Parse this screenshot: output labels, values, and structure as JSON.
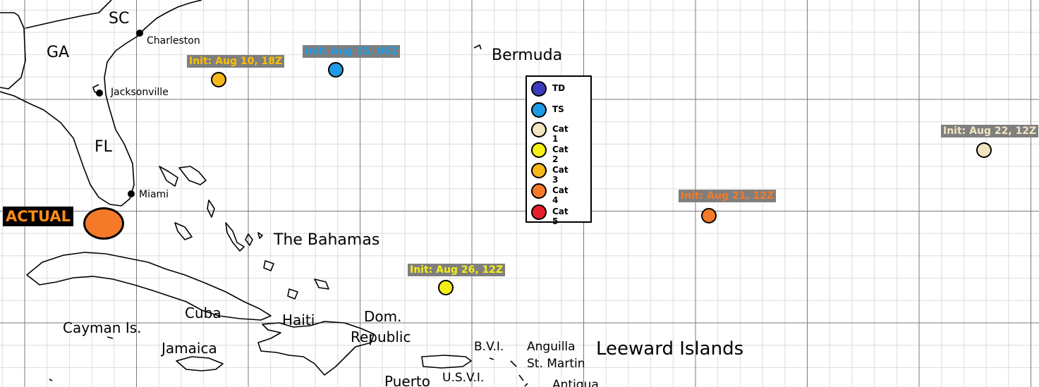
{
  "map_labels": {
    "sc": "SC",
    "ga": "GA",
    "fl": "FL",
    "bermuda": "Bermuda",
    "bahamas": "The Bahamas",
    "cuba": "Cuba",
    "cayman": "Cayman Is.",
    "jamaica": "Jamaica",
    "haiti": "Haiti",
    "dom1": "Dom.",
    "dom2": "Republic",
    "bvi": "B.V.I.",
    "anguilla": "Anguilla",
    "stmartin": "St. Martin",
    "leeward": "Leeward Islands",
    "puerto": "Puerto",
    "usvi": "U.S.V.I.",
    "antigua": "Antigua"
  },
  "cities": {
    "charleston": "Charleston",
    "jacksonville": "Jacksonville",
    "miami": "Miami"
  },
  "actual": {
    "label": "ACTUAL",
    "category": "Cat 4"
  },
  "forecasts": [
    {
      "init": "Init: Aug 10, 18Z",
      "category": "Cat 3"
    },
    {
      "init": "Init: Aug 15, 06Z",
      "category": "TS"
    },
    {
      "init": "Init: Aug 22, 12Z",
      "category": "Cat 1"
    },
    {
      "init": "Init: Aug 21, 12Z",
      "category": "Cat 4"
    },
    {
      "init": "Init: Aug 26, 12Z",
      "category": "Cat 2"
    }
  ],
  "legend": [
    {
      "label": "TD",
      "color": "#3b3bbf"
    },
    {
      "label": "TS",
      "color": "#1e9be6"
    },
    {
      "label": "Cat 1",
      "color": "#f3e5c0"
    },
    {
      "label": "Cat 2",
      "color": "#f5ef14"
    },
    {
      "label": "Cat 3",
      "color": "#f5b719"
    },
    {
      "label": "Cat 4",
      "color": "#f47a29"
    },
    {
      "label": "Cat 5",
      "color": "#e8202a"
    }
  ],
  "init_text_colors": {
    "Cat 3": "#ffc000",
    "TS": "#1e9be6",
    "Cat 1": "#f3e5c0",
    "Cat 4": "#f47a29",
    "Cat 2": "#f5ef14"
  }
}
